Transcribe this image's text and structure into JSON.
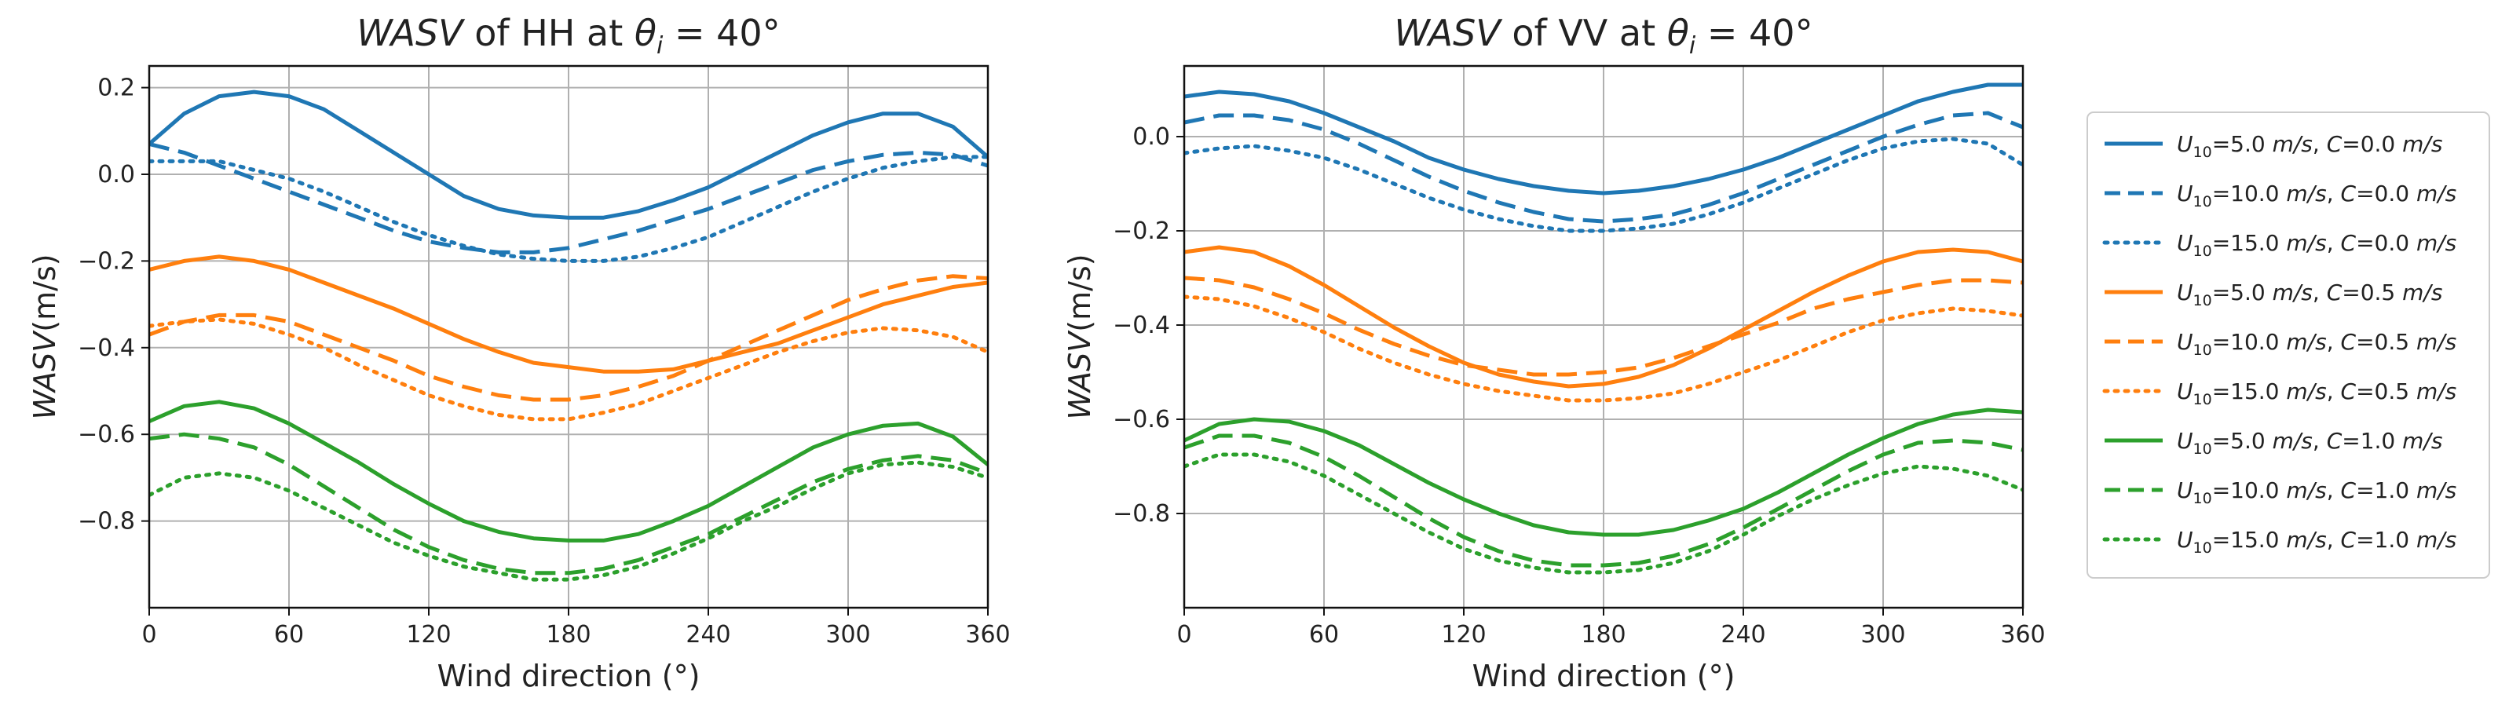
{
  "colors": {
    "blue": "#1f77b4",
    "orange": "#ff7f0e",
    "green": "#2ca02c"
  },
  "legend": {
    "placement": "right-outside",
    "entries": [
      {
        "u10": "=5.0 ",
        "unit": "m/s",
        "c": "=0.0 ",
        "color": "blue",
        "dash": "solid"
      },
      {
        "u10": "=10.0 ",
        "unit": "m/s",
        "c": "=0.0 ",
        "color": "blue",
        "dash": "dashed"
      },
      {
        "u10": "=15.0 ",
        "unit": "m/s",
        "c": "=0.0 ",
        "color": "blue",
        "dash": "dotted"
      },
      {
        "u10": "=5.0 ",
        "unit": "m/s",
        "c": "=0.5 ",
        "color": "orange",
        "dash": "solid"
      },
      {
        "u10": "=10.0 ",
        "unit": "m/s",
        "c": "=0.5 ",
        "color": "orange",
        "dash": "dashed"
      },
      {
        "u10": "=15.0 ",
        "unit": "m/s",
        "c": "=0.5 ",
        "color": "orange",
        "dash": "dotted"
      },
      {
        "u10": "=5.0 ",
        "unit": "m/s",
        "c": "=1.0 ",
        "color": "green",
        "dash": "solid"
      },
      {
        "u10": "=10.0 ",
        "unit": "m/s",
        "c": "=1.0 ",
        "color": "green",
        "dash": "dashed"
      },
      {
        "u10": "=15.0 ",
        "unit": "m/s",
        "c": "=1.0 ",
        "color": "green",
        "dash": "dotted"
      }
    ]
  },
  "chart_data": [
    {
      "type": "line",
      "title_main": "WASV",
      "title_rest": " of HH at ",
      "title_theta": "θ",
      "title_sub": "i",
      "title_eq": " = 40°",
      "xlabel": "Wind direction (°)",
      "ylabel_main": "WASV",
      "ylabel_unit": "(m/s)",
      "xlim": [
        0,
        360
      ],
      "ylim": [
        -1.0,
        0.25
      ],
      "xticks": [
        0,
        60,
        120,
        180,
        240,
        300,
        360
      ],
      "yticks": [
        -0.8,
        -0.6,
        -0.4,
        -0.2,
        0.0,
        0.2
      ],
      "ytick_labels": [
        "−0.8",
        "−0.6",
        "−0.4",
        "−0.2",
        "0.0",
        "0.2"
      ],
      "grid": true,
      "x": [
        0,
        15,
        30,
        45,
        60,
        75,
        90,
        105,
        120,
        135,
        150,
        165,
        180,
        195,
        210,
        225,
        240,
        255,
        270,
        285,
        300,
        315,
        330,
        345,
        360
      ],
      "series": [
        {
          "color": "blue",
          "dash": "solid",
          "values": [
            0.07,
            0.14,
            0.18,
            0.19,
            0.18,
            0.15,
            0.1,
            0.05,
            0.0,
            -0.05,
            -0.08,
            -0.095,
            -0.1,
            -0.1,
            -0.085,
            -0.06,
            -0.03,
            0.01,
            0.05,
            0.09,
            0.12,
            0.14,
            0.14,
            0.11,
            0.04
          ]
        },
        {
          "color": "blue",
          "dash": "dashed",
          "values": [
            0.07,
            0.05,
            0.02,
            -0.01,
            -0.04,
            -0.07,
            -0.1,
            -0.13,
            -0.155,
            -0.17,
            -0.18,
            -0.18,
            -0.17,
            -0.15,
            -0.13,
            -0.105,
            -0.08,
            -0.05,
            -0.02,
            0.01,
            0.03,
            0.045,
            0.05,
            0.045,
            0.02
          ]
        },
        {
          "color": "blue",
          "dash": "dotted",
          "values": [
            0.03,
            0.03,
            0.03,
            0.01,
            -0.01,
            -0.04,
            -0.075,
            -0.11,
            -0.14,
            -0.165,
            -0.185,
            -0.195,
            -0.2,
            -0.2,
            -0.19,
            -0.17,
            -0.145,
            -0.11,
            -0.075,
            -0.04,
            -0.01,
            0.015,
            0.03,
            0.04,
            0.04
          ]
        },
        {
          "color": "orange",
          "dash": "solid",
          "values": [
            -0.22,
            -0.2,
            -0.19,
            -0.2,
            -0.22,
            -0.25,
            -0.28,
            -0.31,
            -0.345,
            -0.38,
            -0.41,
            -0.435,
            -0.445,
            -0.455,
            -0.455,
            -0.45,
            -0.43,
            -0.41,
            -0.39,
            -0.36,
            -0.33,
            -0.3,
            -0.28,
            -0.26,
            -0.25
          ]
        },
        {
          "color": "orange",
          "dash": "dashed",
          "values": [
            -0.37,
            -0.34,
            -0.325,
            -0.325,
            -0.34,
            -0.37,
            -0.4,
            -0.43,
            -0.465,
            -0.49,
            -0.51,
            -0.52,
            -0.52,
            -0.51,
            -0.49,
            -0.465,
            -0.43,
            -0.395,
            -0.36,
            -0.325,
            -0.29,
            -0.265,
            -0.245,
            -0.235,
            -0.24
          ]
        },
        {
          "color": "orange",
          "dash": "dotted",
          "values": [
            -0.35,
            -0.34,
            -0.335,
            -0.345,
            -0.37,
            -0.4,
            -0.44,
            -0.475,
            -0.51,
            -0.535,
            -0.555,
            -0.565,
            -0.565,
            -0.55,
            -0.53,
            -0.5,
            -0.47,
            -0.44,
            -0.41,
            -0.385,
            -0.365,
            -0.355,
            -0.36,
            -0.375,
            -0.41
          ]
        },
        {
          "color": "green",
          "dash": "solid",
          "values": [
            -0.57,
            -0.535,
            -0.525,
            -0.54,
            -0.575,
            -0.62,
            -0.665,
            -0.715,
            -0.76,
            -0.8,
            -0.825,
            -0.84,
            -0.845,
            -0.845,
            -0.83,
            -0.8,
            -0.765,
            -0.72,
            -0.675,
            -0.63,
            -0.6,
            -0.58,
            -0.575,
            -0.605,
            -0.67
          ]
        },
        {
          "color": "green",
          "dash": "dashed",
          "values": [
            -0.61,
            -0.6,
            -0.61,
            -0.63,
            -0.67,
            -0.72,
            -0.77,
            -0.82,
            -0.86,
            -0.89,
            -0.91,
            -0.92,
            -0.92,
            -0.91,
            -0.89,
            -0.86,
            -0.83,
            -0.79,
            -0.75,
            -0.71,
            -0.68,
            -0.66,
            -0.65,
            -0.66,
            -0.69
          ]
        },
        {
          "color": "green",
          "dash": "dotted",
          "values": [
            -0.74,
            -0.7,
            -0.69,
            -0.7,
            -0.73,
            -0.77,
            -0.81,
            -0.85,
            -0.88,
            -0.905,
            -0.92,
            -0.935,
            -0.935,
            -0.925,
            -0.905,
            -0.875,
            -0.84,
            -0.8,
            -0.765,
            -0.725,
            -0.69,
            -0.67,
            -0.665,
            -0.675,
            -0.7
          ]
        }
      ]
    },
    {
      "type": "line",
      "title_main": "WASV",
      "title_rest": " of VV at ",
      "title_theta": "θ",
      "title_sub": "i",
      "title_eq": " = 40°",
      "xlabel": "Wind direction (°)",
      "ylabel_main": "WASV",
      "ylabel_unit": "(m/s)",
      "xlim": [
        0,
        360
      ],
      "ylim": [
        -1.0,
        0.15
      ],
      "xticks": [
        0,
        60,
        120,
        180,
        240,
        300,
        360
      ],
      "yticks": [
        -0.8,
        -0.6,
        -0.4,
        -0.2,
        0.0
      ],
      "ytick_labels": [
        "−0.8",
        "−0.6",
        "−0.4",
        "−0.2",
        "0.0"
      ],
      "grid": true,
      "x": [
        0,
        15,
        30,
        45,
        60,
        75,
        90,
        105,
        120,
        135,
        150,
        165,
        180,
        195,
        210,
        225,
        240,
        255,
        270,
        285,
        300,
        315,
        330,
        345,
        360
      ],
      "series": [
        {
          "color": "blue",
          "dash": "solid",
          "values": [
            0.085,
            0.095,
            0.09,
            0.075,
            0.05,
            0.02,
            -0.01,
            -0.045,
            -0.07,
            -0.09,
            -0.105,
            -0.115,
            -0.12,
            -0.115,
            -0.105,
            -0.09,
            -0.07,
            -0.045,
            -0.015,
            0.015,
            0.045,
            0.075,
            0.095,
            0.11,
            0.11
          ]
        },
        {
          "color": "blue",
          "dash": "dashed",
          "values": [
            0.03,
            0.045,
            0.045,
            0.035,
            0.015,
            -0.015,
            -0.05,
            -0.085,
            -0.115,
            -0.14,
            -0.16,
            -0.175,
            -0.18,
            -0.175,
            -0.165,
            -0.145,
            -0.12,
            -0.09,
            -0.06,
            -0.03,
            0.0,
            0.025,
            0.045,
            0.05,
            0.02
          ]
        },
        {
          "color": "blue",
          "dash": "dotted",
          "values": [
            -0.035,
            -0.025,
            -0.02,
            -0.03,
            -0.045,
            -0.07,
            -0.1,
            -0.13,
            -0.155,
            -0.175,
            -0.19,
            -0.2,
            -0.2,
            -0.195,
            -0.185,
            -0.165,
            -0.14,
            -0.11,
            -0.08,
            -0.05,
            -0.025,
            -0.01,
            -0.005,
            -0.015,
            -0.06
          ]
        },
        {
          "color": "orange",
          "dash": "solid",
          "values": [
            -0.245,
            -0.235,
            -0.245,
            -0.275,
            -0.315,
            -0.36,
            -0.405,
            -0.445,
            -0.48,
            -0.505,
            -0.52,
            -0.53,
            -0.525,
            -0.51,
            -0.485,
            -0.45,
            -0.41,
            -0.37,
            -0.33,
            -0.295,
            -0.265,
            -0.245,
            -0.24,
            -0.245,
            -0.265
          ]
        },
        {
          "color": "orange",
          "dash": "dashed",
          "values": [
            -0.3,
            -0.305,
            -0.32,
            -0.345,
            -0.375,
            -0.41,
            -0.44,
            -0.465,
            -0.485,
            -0.495,
            -0.505,
            -0.505,
            -0.5,
            -0.49,
            -0.47,
            -0.445,
            -0.42,
            -0.395,
            -0.365,
            -0.345,
            -0.33,
            -0.315,
            -0.305,
            -0.305,
            -0.31
          ]
        },
        {
          "color": "orange",
          "dash": "dotted",
          "values": [
            -0.34,
            -0.345,
            -0.36,
            -0.385,
            -0.415,
            -0.45,
            -0.48,
            -0.505,
            -0.525,
            -0.54,
            -0.55,
            -0.56,
            -0.56,
            -0.555,
            -0.545,
            -0.525,
            -0.5,
            -0.475,
            -0.445,
            -0.415,
            -0.39,
            -0.375,
            -0.365,
            -0.37,
            -0.38
          ]
        },
        {
          "color": "green",
          "dash": "solid",
          "values": [
            -0.645,
            -0.61,
            -0.6,
            -0.605,
            -0.625,
            -0.655,
            -0.695,
            -0.735,
            -0.77,
            -0.8,
            -0.825,
            -0.84,
            -0.845,
            -0.845,
            -0.835,
            -0.815,
            -0.79,
            -0.755,
            -0.715,
            -0.675,
            -0.64,
            -0.61,
            -0.59,
            -0.58,
            -0.585
          ]
        },
        {
          "color": "green",
          "dash": "dashed",
          "values": [
            -0.66,
            -0.635,
            -0.635,
            -0.65,
            -0.68,
            -0.72,
            -0.765,
            -0.81,
            -0.85,
            -0.88,
            -0.9,
            -0.91,
            -0.91,
            -0.905,
            -0.89,
            -0.865,
            -0.83,
            -0.79,
            -0.75,
            -0.71,
            -0.675,
            -0.65,
            -0.645,
            -0.65,
            -0.665
          ]
        },
        {
          "color": "green",
          "dash": "dotted",
          "values": [
            -0.7,
            -0.675,
            -0.675,
            -0.69,
            -0.72,
            -0.76,
            -0.8,
            -0.84,
            -0.875,
            -0.9,
            -0.915,
            -0.925,
            -0.925,
            -0.92,
            -0.905,
            -0.88,
            -0.845,
            -0.805,
            -0.77,
            -0.74,
            -0.715,
            -0.7,
            -0.705,
            -0.72,
            -0.75
          ]
        }
      ]
    }
  ]
}
